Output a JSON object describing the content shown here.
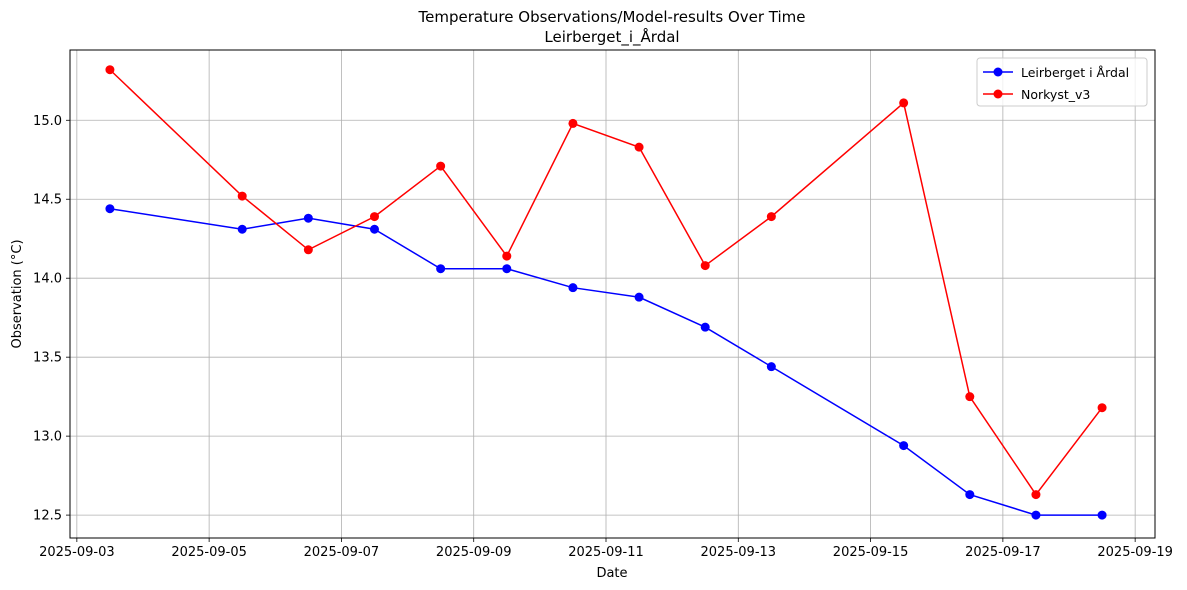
{
  "chart_data": {
    "type": "line",
    "title": "Temperature Observations/Model-results Over Time",
    "subtitle": "Leirberget_i_Årdal",
    "xlabel": "Date",
    "ylabel": "Observation (°C)",
    "x_ticks": [
      "2025-09-03",
      "2025-09-05",
      "2025-09-07",
      "2025-09-09",
      "2025-09-11",
      "2025-09-13",
      "2025-09-15",
      "2025-09-17",
      "2025-09-19"
    ],
    "y_ticks": [
      "12.5",
      "13.0",
      "13.5",
      "14.0",
      "14.5",
      "15.0"
    ],
    "xlim": [
      "2025-09-02T21:31",
      "2025-09-19T07:12"
    ],
    "ylim": [
      12.355,
      15.445
    ],
    "grid": true,
    "legend_position": "top-right",
    "series": [
      {
        "name": "Leirberget i Årdal",
        "color": "#0000ff",
        "points": [
          {
            "x": "2025-09-03T12:00",
            "y": 14.44
          },
          {
            "x": "2025-09-05T12:00",
            "y": 14.31
          },
          {
            "x": "2025-09-06T12:00",
            "y": 14.38
          },
          {
            "x": "2025-09-07T12:00",
            "y": 14.31
          },
          {
            "x": "2025-09-08T12:00",
            "y": 14.06
          },
          {
            "x": "2025-09-09T12:00",
            "y": 14.06
          },
          {
            "x": "2025-09-10T12:00",
            "y": 13.94
          },
          {
            "x": "2025-09-11T12:00",
            "y": 13.88
          },
          {
            "x": "2025-09-12T12:00",
            "y": 13.69
          },
          {
            "x": "2025-09-13T12:00",
            "y": 13.44
          },
          {
            "x": "2025-09-15T12:00",
            "y": 12.94
          },
          {
            "x": "2025-09-16T12:00",
            "y": 12.63
          },
          {
            "x": "2025-09-17T12:00",
            "y": 12.5
          },
          {
            "x": "2025-09-18T12:00",
            "y": 12.5
          }
        ]
      },
      {
        "name": "Norkyst_v3",
        "color": "#ff0000",
        "points": [
          {
            "x": "2025-09-03T12:00",
            "y": 15.32
          },
          {
            "x": "2025-09-05T12:00",
            "y": 14.52
          },
          {
            "x": "2025-09-06T12:00",
            "y": 14.18
          },
          {
            "x": "2025-09-07T12:00",
            "y": 14.39
          },
          {
            "x": "2025-09-08T12:00",
            "y": 14.71
          },
          {
            "x": "2025-09-09T12:00",
            "y": 14.14
          },
          {
            "x": "2025-09-10T12:00",
            "y": 14.98
          },
          {
            "x": "2025-09-11T12:00",
            "y": 14.83
          },
          {
            "x": "2025-09-12T12:00",
            "y": 14.08
          },
          {
            "x": "2025-09-13T12:00",
            "y": 14.39
          },
          {
            "x": "2025-09-15T12:00",
            "y": 15.11
          },
          {
            "x": "2025-09-16T12:00",
            "y": 13.25
          },
          {
            "x": "2025-09-17T12:00",
            "y": 12.63
          },
          {
            "x": "2025-09-18T12:00",
            "y": 13.18
          }
        ]
      }
    ]
  }
}
